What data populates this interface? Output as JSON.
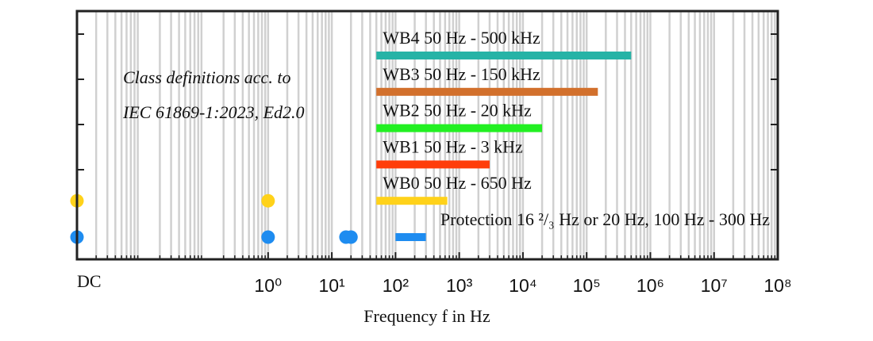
{
  "chart_data": {
    "type": "range-bar",
    "annotation": [
      "Class definitions acc. to",
      "IEC 61869-1:2023, Ed2.0"
    ],
    "xlabel": "Frequency f in Hz",
    "dc_label": "DC",
    "xscale": "log",
    "xlim": [
      0.001,
      100000000
    ],
    "xticks": [
      {
        "value": 1,
        "label": "10⁰"
      },
      {
        "value": 10,
        "label": "10¹"
      },
      {
        "value": 100,
        "label": "10²"
      },
      {
        "value": 1000,
        "label": "10³"
      },
      {
        "value": 10000,
        "label": "10⁴"
      },
      {
        "value": 100000,
        "label": "10⁵"
      },
      {
        "value": 1000000,
        "label": "10⁶"
      },
      {
        "value": 10000000,
        "label": "10⁷"
      },
      {
        "value": 100000000,
        "label": "10⁸"
      }
    ],
    "grid": true,
    "series": [
      {
        "label": "WB4 50 Hz - 500 kHz",
        "color": "#26b3a6",
        "values": [
          50,
          500000
        ]
      },
      {
        "label": "WB3 50 Hz - 150 kHz",
        "color": "#d2702c",
        "values": [
          50,
          150000
        ]
      },
      {
        "label": "WB2 50 Hz - 20 kHz",
        "color": "#22f022",
        "values": [
          50,
          20000
        ]
      },
      {
        "label": "WB1 50 Hz - 3 kHz",
        "color": "#ff3d0a",
        "values": [
          50,
          3000
        ]
      },
      {
        "label": "WB0 50 Hz - 650 Hz",
        "color": "#ffd21a",
        "values": [
          50,
          650
        ],
        "points": [
          0,
          1
        ]
      },
      {
        "label": "Protection 16 ²/₃ Hz or 20 Hz, 100 Hz - 300 Hz",
        "color": "#1e8cf0",
        "values": [
          100,
          300
        ],
        "points": [
          0,
          1,
          16.667,
          20
        ]
      }
    ]
  }
}
